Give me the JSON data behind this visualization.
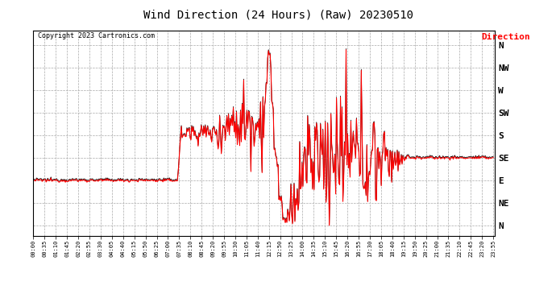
{
  "title": "Wind Direction (24 Hours) (Raw) 20230510",
  "copyright": "Copyright 2023 Cartronics.com",
  "legend_label": "Direction",
  "legend_color": "#ff0000",
  "background_color": "#ffffff",
  "line_color": "#ff0000",
  "shadow_color": "#000000",
  "ytick_labels": [
    "N",
    "NW",
    "W",
    "SW",
    "S",
    "SE",
    "E",
    "NE",
    "N"
  ],
  "ytick_values": [
    360,
    315,
    270,
    225,
    180,
    135,
    90,
    45,
    0
  ],
  "ylim": [
    -20,
    390
  ],
  "title_fontsize": 11,
  "grid_color": "#aaaaaa",
  "grid_linestyle": "--"
}
